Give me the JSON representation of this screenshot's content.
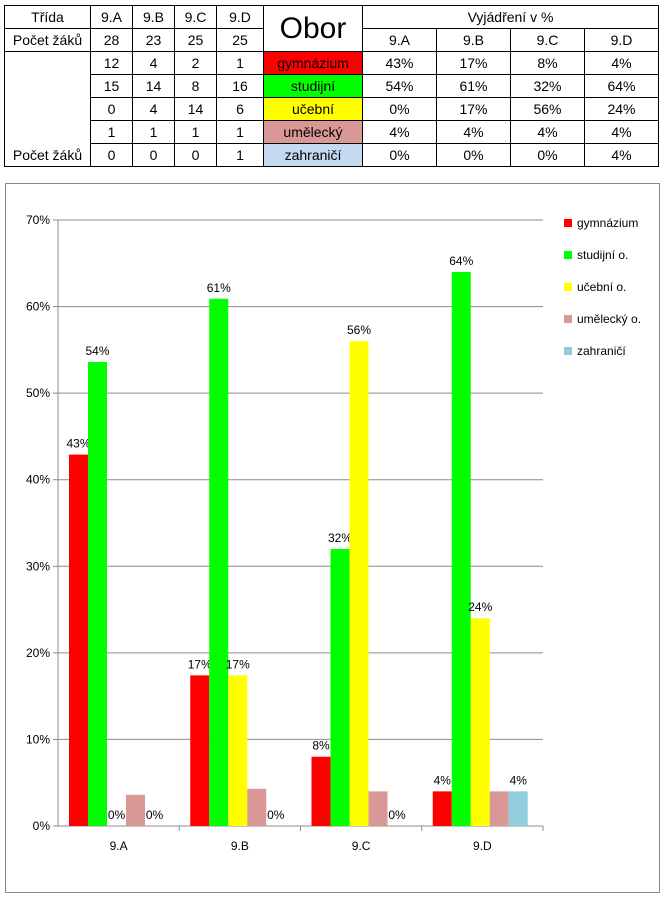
{
  "table": {
    "header": {
      "trida_label": "Třída",
      "classes": [
        "9.A",
        "9.B",
        "9.C",
        "9.D"
      ],
      "obor_label": "Obor",
      "vyjadreni_label": "Vyjádření v %"
    },
    "pocet_row": {
      "label": "Počet žáků",
      "values": [
        "28",
        "23",
        "25",
        "25"
      ]
    },
    "row_label_last": "Počet žáků",
    "rows": [
      {
        "counts": [
          "12",
          "4",
          "2",
          "1"
        ],
        "obor": "gymnázium",
        "color": "#ff0000",
        "pct": [
          "43%",
          "17%",
          "8%",
          "4%"
        ]
      },
      {
        "counts": [
          "15",
          "14",
          "8",
          "16"
        ],
        "obor": "studijní",
        "color": "#00ff00",
        "pct": [
          "54%",
          "61%",
          "32%",
          "64%"
        ]
      },
      {
        "counts": [
          "0",
          "4",
          "14",
          "6"
        ],
        "obor": "učební",
        "color": "#ffff00",
        "pct": [
          "0%",
          "17%",
          "56%",
          "24%"
        ]
      },
      {
        "counts": [
          "1",
          "1",
          "1",
          "1"
        ],
        "obor": "umělecký",
        "color": "#d99795",
        "pct": [
          "4%",
          "4%",
          "4%",
          "4%"
        ]
      },
      {
        "counts": [
          "0",
          "0",
          "0",
          "1"
        ],
        "obor": "zahraničí",
        "color": "#c5d9f1",
        "pct": [
          "0%",
          "0%",
          "0%",
          "4%"
        ]
      }
    ]
  },
  "chart_data": {
    "type": "bar",
    "categories": [
      "9.A",
      "9.B",
      "9.C",
      "9.D"
    ],
    "ylim": [
      0,
      70
    ],
    "yticks": [
      "0%",
      "10%",
      "20%",
      "30%",
      "40%",
      "50%",
      "60%",
      "70%"
    ],
    "grid": true,
    "legend_position": "right",
    "series": [
      {
        "name": "gymnázium",
        "color": "#ff0000",
        "values": [
          42.9,
          17.4,
          8.0,
          4.0
        ],
        "labels": [
          "43%",
          "17%",
          "8%",
          "4%"
        ]
      },
      {
        "name": "studijní o.",
        "color": "#00ff00",
        "values": [
          53.6,
          60.9,
          32.0,
          64.0
        ],
        "labels": [
          "54%",
          "61%",
          "32%",
          "64%"
        ]
      },
      {
        "name": "učební o.",
        "color": "#ffff00",
        "values": [
          0,
          17.4,
          56.0,
          24.0
        ],
        "labels": [
          "0%",
          "17%",
          "56%",
          "24%"
        ]
      },
      {
        "name": "umělecký o.",
        "color": "#d99795",
        "values": [
          3.6,
          4.3,
          4.0,
          4.0
        ],
        "labels": [
          "",
          "",
          "",
          ""
        ]
      },
      {
        "name": "zahraničí",
        "color": "#92cddc",
        "values": [
          0,
          0,
          0,
          4.0
        ],
        "labels": [
          "0%",
          "0%",
          "0%",
          "4%"
        ]
      }
    ]
  }
}
